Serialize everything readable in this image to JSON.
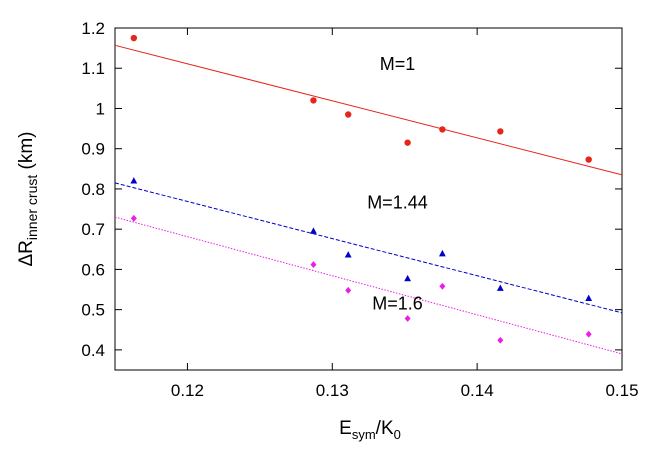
{
  "chart_data": {
    "type": "scatter",
    "xlabel": {
      "main": "E",
      "sub1": "sym",
      "mid": "/K",
      "sub2": "0"
    },
    "ylabel": {
      "main": "ΔR",
      "sub": "inner crust",
      "unit": " (km)"
    },
    "xlim": [
      0.115,
      0.15
    ],
    "ylim": [
      0.35,
      1.2
    ],
    "x_ticks": [
      0.12,
      0.13,
      0.14,
      0.15
    ],
    "x_tick_labels": [
      "0.12",
      "0.13",
      "0.14",
      "0.15"
    ],
    "y_ticks": [
      0.4,
      0.5,
      0.6,
      0.7,
      0.8,
      0.9,
      1.0,
      1.1,
      1.2
    ],
    "y_tick_labels": [
      "0.4",
      "0.5",
      "0.6",
      "0.7",
      "0.8",
      "0.9",
      "1",
      "1.1",
      "1.2"
    ],
    "grid": false,
    "series": [
      {
        "label": "M=1",
        "label_pos": [
          0.1345,
          1.095
        ],
        "color": "#e8251b",
        "marker": "circle",
        "line_style": "solid",
        "x": [
          0.1163,
          0.1287,
          0.1311,
          0.1352,
          0.1376,
          0.1416,
          0.1477
        ],
        "y": [
          1.175,
          1.02,
          0.985,
          0.915,
          0.948,
          0.943,
          0.873
        ],
        "fit": [
          [
            0.115,
            1.157
          ],
          [
            0.15,
            0.835
          ]
        ]
      },
      {
        "label": "M=1.44",
        "label_pos": [
          0.1345,
          0.752
        ],
        "color": "#0000c8",
        "marker": "triangle",
        "line_style": "dashed",
        "x": [
          0.1163,
          0.1287,
          0.1311,
          0.1352,
          0.1376,
          0.1416,
          0.1477
        ],
        "y": [
          0.82,
          0.695,
          0.636,
          0.577,
          0.639,
          0.553,
          0.528
        ],
        "fit": [
          [
            0.115,
            0.815
          ],
          [
            0.15,
            0.492
          ]
        ]
      },
      {
        "label": "M=1.6",
        "label_pos": [
          0.1345,
          0.5
        ],
        "color": "#ea1fe6",
        "marker": "diamond",
        "line_style": "dotted",
        "x": [
          0.1163,
          0.1287,
          0.1311,
          0.1352,
          0.1376,
          0.1416,
          0.1477
        ],
        "y": [
          0.727,
          0.612,
          0.548,
          0.478,
          0.558,
          0.424,
          0.439
        ],
        "fit": [
          [
            0.115,
            0.73
          ],
          [
            0.15,
            0.39
          ]
        ]
      }
    ]
  }
}
